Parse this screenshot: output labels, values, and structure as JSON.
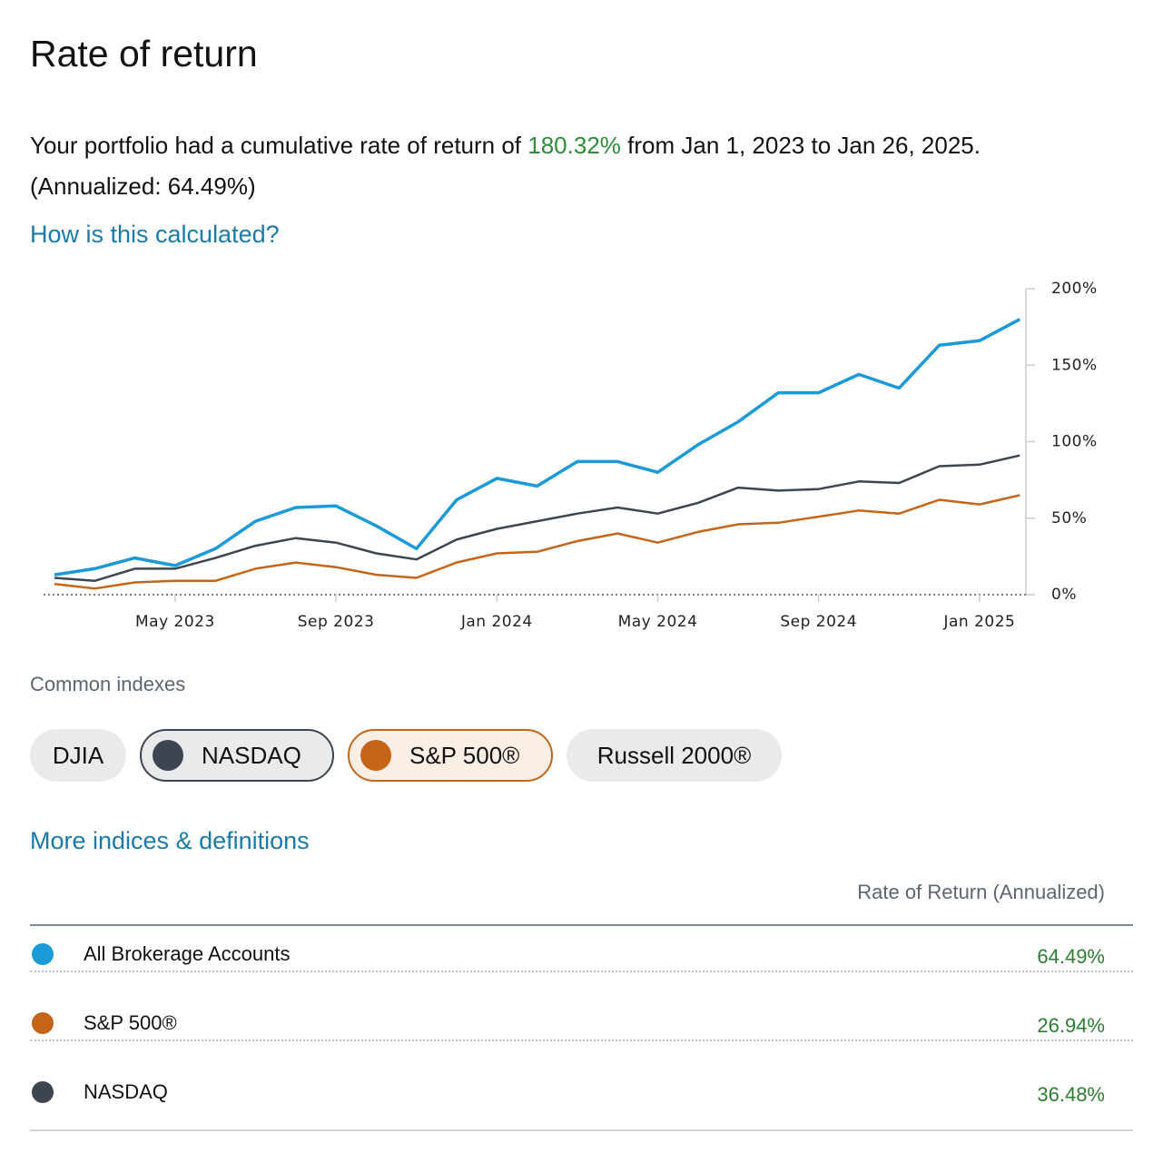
{
  "title": "Rate of return",
  "summary": {
    "prefix": "Your portfolio had a cumulative rate of return of",
    "cumulative": "180.32%",
    "suffix": "from Jan 1, 2023 to Jan 26, 2025.",
    "annualized": "(Annualized: 64.49%)"
  },
  "calc_link": "How is this calculated?",
  "chart_data": {
    "type": "line",
    "categories": [
      null,
      null,
      null,
      "May 2023",
      null,
      null,
      null,
      "Sep 2023",
      null,
      null,
      null,
      "Jan 2024",
      null,
      null,
      null,
      "May 2024",
      null,
      null,
      null,
      "Sep 2024",
      null,
      null,
      null,
      "Jan 2025",
      null
    ],
    "series": [
      {
        "name": "All Brokerage Accounts",
        "color": "#1a9ad6",
        "values": [
          13,
          17,
          24,
          19,
          30,
          48,
          57,
          58,
          45,
          30,
          62,
          76,
          71,
          87,
          87,
          80,
          98,
          113,
          132,
          132,
          144,
          135,
          163,
          166,
          180
        ]
      },
      {
        "name": "S&P 500®",
        "color": "#c4651a",
        "values": [
          7,
          4,
          8,
          9,
          9,
          17,
          21,
          18,
          13,
          11,
          21,
          27,
          28,
          35,
          40,
          34,
          41,
          46,
          47,
          51,
          55,
          53,
          62,
          59,
          65
        ]
      },
      {
        "name": "NASDAQ",
        "color": "#3d4650",
        "values": [
          11,
          9,
          17,
          17,
          24,
          32,
          37,
          34,
          27,
          23,
          36,
          43,
          48,
          53,
          57,
          53,
          60,
          70,
          68,
          69,
          74,
          73,
          84,
          85,
          91
        ]
      }
    ],
    "ylim": [
      0,
      200
    ],
    "yticks": [
      {
        "value": 0,
        "label": "0%"
      },
      {
        "value": 50,
        "label": "50%"
      },
      {
        "value": 100,
        "label": "100%"
      },
      {
        "value": 150,
        "label": "150%"
      },
      {
        "value": 200,
        "label": "200%"
      }
    ],
    "y_axis_side": "right",
    "grid": false
  },
  "indexes_label": "Common indexes",
  "index_buttons": [
    {
      "label": "DJIA",
      "selected": false
    },
    {
      "label": "NASDAQ",
      "selected": true
    },
    {
      "label": "S&P 500®",
      "selected": true
    },
    {
      "label": "Russell 2000®",
      "selected": false
    }
  ],
  "more_link": "More indices & definitions",
  "table": {
    "header": "Rate of Return (Annualized)",
    "rows": [
      "64.49%",
      "26.94%",
      "36.48%"
    ]
  }
}
